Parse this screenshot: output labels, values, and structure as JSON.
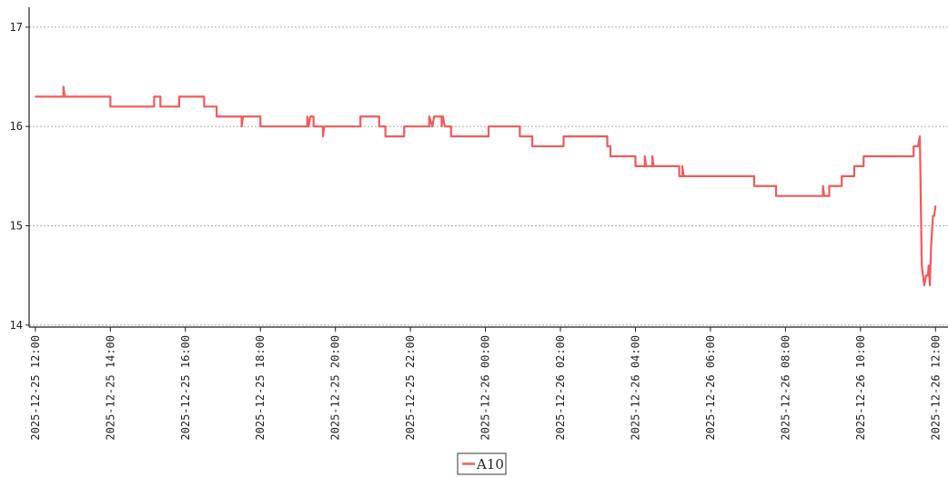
{
  "chart_data": {
    "type": "line",
    "title": "",
    "xlabel": "",
    "ylabel": "",
    "x_range": [
      "2025-12-25 11:50",
      "2025-12-26 12:20"
    ],
    "ylim": [
      13.98,
      17.2
    ],
    "yticks": [
      14,
      15,
      16,
      17
    ],
    "xticks": [
      "2025-12-25 12:00",
      "2025-12-25 14:00",
      "2025-12-25 16:00",
      "2025-12-25 18:00",
      "2025-12-25 20:00",
      "2025-12-25 22:00",
      "2025-12-26 00:00",
      "2025-12-26 02:00",
      "2025-12-26 04:00",
      "2025-12-26 06:00",
      "2025-12-26 08:00",
      "2025-12-26 10:00",
      "2025-12-26 12:00"
    ],
    "grid": "horizontal-dashed",
    "legend_position": "bottom-center",
    "series": [
      {
        "name": "A10",
        "color": "#f05a5a",
        "points": [
          [
            "2025-12-25 12:00",
            16.3
          ],
          [
            "2025-12-25 12:45",
            16.3
          ],
          [
            "2025-12-25 12:45",
            16.4
          ],
          [
            "2025-12-25 12:47",
            16.3
          ],
          [
            "2025-12-25 14:00",
            16.3
          ],
          [
            "2025-12-25 14:00",
            16.2
          ],
          [
            "2025-12-25 15:10",
            16.2
          ],
          [
            "2025-12-25 15:10",
            16.3
          ],
          [
            "2025-12-25 15:20",
            16.3
          ],
          [
            "2025-12-25 15:20",
            16.2
          ],
          [
            "2025-12-25 15:50",
            16.2
          ],
          [
            "2025-12-25 15:50",
            16.3
          ],
          [
            "2025-12-25 16:30",
            16.3
          ],
          [
            "2025-12-25 16:30",
            16.2
          ],
          [
            "2025-12-25 16:50",
            16.2
          ],
          [
            "2025-12-25 16:50",
            16.1
          ],
          [
            "2025-12-25 17:30",
            16.1
          ],
          [
            "2025-12-25 17:30",
            16.0
          ],
          [
            "2025-12-25 17:32",
            16.1
          ],
          [
            "2025-12-25 18:00",
            16.1
          ],
          [
            "2025-12-25 18:00",
            16.0
          ],
          [
            "2025-12-25 19:15",
            16.0
          ],
          [
            "2025-12-25 19:15",
            16.1
          ],
          [
            "2025-12-25 19:17",
            16.0
          ],
          [
            "2025-12-25 19:20",
            16.1
          ],
          [
            "2025-12-25 19:25",
            16.1
          ],
          [
            "2025-12-25 19:25",
            16.0
          ],
          [
            "2025-12-25 19:40",
            16.0
          ],
          [
            "2025-12-25 19:40",
            15.9
          ],
          [
            "2025-12-25 19:42",
            16.0
          ],
          [
            "2025-12-25 20:40",
            16.0
          ],
          [
            "2025-12-25 20:40",
            16.1
          ],
          [
            "2025-12-25 21:10",
            16.1
          ],
          [
            "2025-12-25 21:10",
            16.0
          ],
          [
            "2025-12-25 21:20",
            16.0
          ],
          [
            "2025-12-25 21:20",
            15.9
          ],
          [
            "2025-12-25 21:50",
            15.9
          ],
          [
            "2025-12-25 21:50",
            16.0
          ],
          [
            "2025-12-25 22:30",
            16.0
          ],
          [
            "2025-12-25 22:30",
            16.1
          ],
          [
            "2025-12-25 22:35",
            16.0
          ],
          [
            "2025-12-25 22:38",
            16.1
          ],
          [
            "2025-12-25 22:50",
            16.1
          ],
          [
            "2025-12-25 22:50",
            16.0
          ],
          [
            "2025-12-25 22:52",
            16.1
          ],
          [
            "2025-12-25 22:55",
            16.0
          ],
          [
            "2025-12-25 23:05",
            16.0
          ],
          [
            "2025-12-25 23:05",
            15.9
          ],
          [
            "2025-12-26 00:05",
            15.9
          ],
          [
            "2025-12-26 00:05",
            16.0
          ],
          [
            "2025-12-26 00:55",
            16.0
          ],
          [
            "2025-12-26 00:55",
            15.9
          ],
          [
            "2025-12-26 01:15",
            15.9
          ],
          [
            "2025-12-26 01:15",
            15.8
          ],
          [
            "2025-12-26 02:05",
            15.8
          ],
          [
            "2025-12-26 02:05",
            15.9
          ],
          [
            "2025-12-26 03:15",
            15.9
          ],
          [
            "2025-12-26 03:15",
            15.8
          ],
          [
            "2025-12-26 03:20",
            15.8
          ],
          [
            "2025-12-26 03:20",
            15.7
          ],
          [
            "2025-12-26 04:00",
            15.7
          ],
          [
            "2025-12-26 04:00",
            15.6
          ],
          [
            "2025-12-26 04:15",
            15.6
          ],
          [
            "2025-12-26 04:15",
            15.7
          ],
          [
            "2025-12-26 04:17",
            15.6
          ],
          [
            "2025-12-26 04:27",
            15.6
          ],
          [
            "2025-12-26 04:27",
            15.7
          ],
          [
            "2025-12-26 04:29",
            15.6
          ],
          [
            "2025-12-26 05:10",
            15.6
          ],
          [
            "2025-12-26 05:10",
            15.5
          ],
          [
            "2025-12-26 05:15",
            15.5
          ],
          [
            "2025-12-26 05:15",
            15.6
          ],
          [
            "2025-12-26 05:17",
            15.5
          ],
          [
            "2025-12-26 07:10",
            15.5
          ],
          [
            "2025-12-26 07:10",
            15.4
          ],
          [
            "2025-12-26 07:45",
            15.4
          ],
          [
            "2025-12-26 07:45",
            15.3
          ],
          [
            "2025-12-26 09:00",
            15.3
          ],
          [
            "2025-12-26 09:00",
            15.4
          ],
          [
            "2025-12-26 09:02",
            15.3
          ],
          [
            "2025-12-26 09:10",
            15.3
          ],
          [
            "2025-12-26 09:10",
            15.4
          ],
          [
            "2025-12-26 09:30",
            15.4
          ],
          [
            "2025-12-26 09:30",
            15.5
          ],
          [
            "2025-12-26 09:50",
            15.5
          ],
          [
            "2025-12-26 09:50",
            15.6
          ],
          [
            "2025-12-26 10:05",
            15.6
          ],
          [
            "2025-12-26 10:05",
            15.7
          ],
          [
            "2025-12-26 11:25",
            15.7
          ],
          [
            "2025-12-26 11:25",
            15.8
          ],
          [
            "2025-12-26 11:32",
            15.8
          ],
          [
            "2025-12-26 11:35",
            15.9
          ],
          [
            "2025-12-26 11:38",
            14.6
          ],
          [
            "2025-12-26 11:42",
            14.4
          ],
          [
            "2025-12-26 11:45",
            14.5
          ],
          [
            "2025-12-26 11:48",
            14.5
          ],
          [
            "2025-12-26 11:49",
            14.6
          ],
          [
            "2025-12-26 11:51",
            14.4
          ],
          [
            "2025-12-26 11:53",
            14.8
          ],
          [
            "2025-12-26 11:56",
            15.1
          ],
          [
            "2025-12-26 11:58",
            15.1
          ],
          [
            "2025-12-26 12:00",
            15.2
          ]
        ]
      }
    ]
  }
}
